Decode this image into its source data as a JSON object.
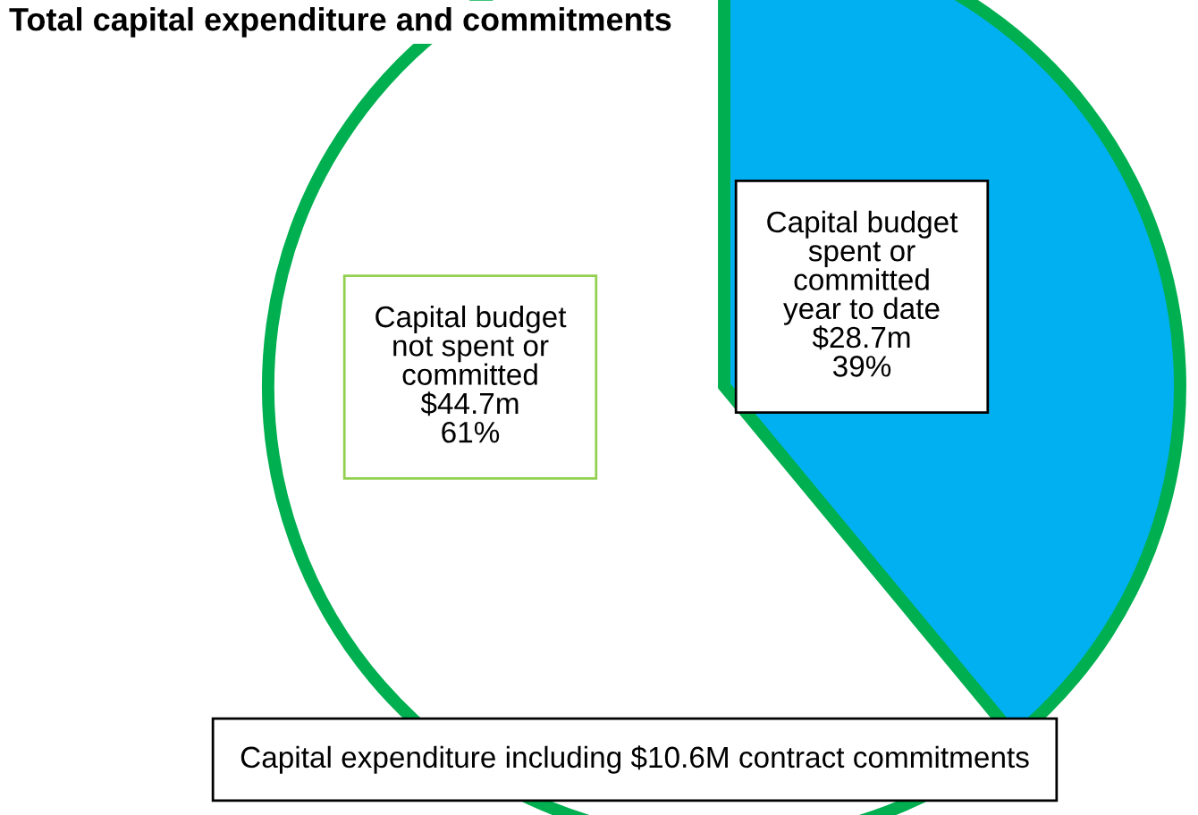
{
  "chart_data": {
    "type": "pie",
    "title": "Total capital expenditure and commitments",
    "categories": [
      "Capital budget\nspent or\ncommitted\nyear to date\n$28.7m",
      "Capital budget\nnot spent or\ncommitted\n$44.7m"
    ],
    "values": [
      39,
      61
    ],
    "value_labels": [
      "39%",
      "61%"
    ],
    "colors": [
      "#00b0f0",
      "#ffffff"
    ],
    "annotations": [
      "Capital expenditure including $10.6M contract commitments"
    ]
  }
}
